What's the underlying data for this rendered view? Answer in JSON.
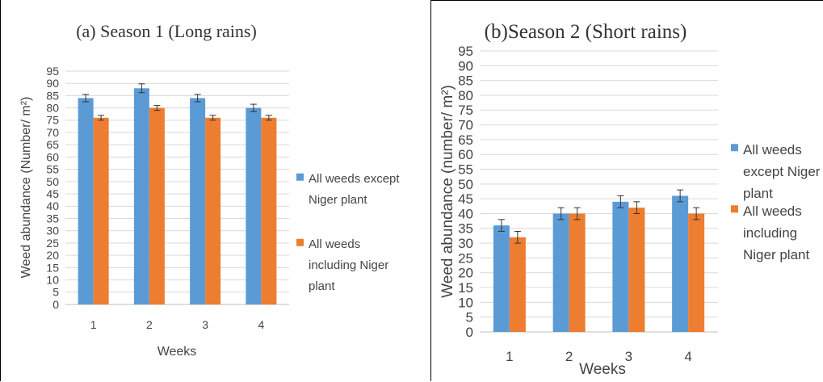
{
  "chart_data": [
    {
      "type": "bar",
      "title": "(a) Season 1 (Long rains)",
      "xlabel": "Weeks",
      "ylabel": "Weed abundance (Number/ m²)",
      "ylim": [
        0,
        95
      ],
      "yticks": [
        0,
        5,
        10,
        15,
        20,
        25,
        30,
        35,
        40,
        45,
        50,
        55,
        60,
        65,
        70,
        75,
        80,
        85,
        90,
        95
      ],
      "categories": [
        "1",
        "2",
        "3",
        "4"
      ],
      "grid": true,
      "legend_position": "right",
      "series": [
        {
          "name": "All weeds except Niger plant",
          "legend_lines": [
            "All weeds except",
            "Niger plant"
          ],
          "color": "#5b9bd5",
          "values": [
            84,
            88,
            84,
            80
          ],
          "errors": [
            1.5,
            1.8,
            1.5,
            1.5
          ]
        },
        {
          "name": "All weeds including Niger plant",
          "legend_lines": [
            "All weeds",
            "including Niger",
            "plant"
          ],
          "color": "#ed7d31",
          "values": [
            76,
            80,
            76,
            76
          ],
          "errors": [
            1.0,
            1.0,
            1.0,
            1.0
          ]
        }
      ]
    },
    {
      "type": "bar",
      "title": "(b)Season 2 (Short rains)",
      "xlabel": "Weeks",
      "ylabel": "Weed abundance (number/ m²)",
      "ylim": [
        0,
        95
      ],
      "yticks": [
        0,
        5,
        10,
        15,
        20,
        25,
        30,
        35,
        40,
        45,
        50,
        55,
        60,
        65,
        70,
        75,
        80,
        85,
        90,
        95
      ],
      "categories": [
        "1",
        "2",
        "3",
        "4"
      ],
      "grid": true,
      "legend_position": "right",
      "series": [
        {
          "name": "All weeds except Niger plant",
          "legend_lines": [
            "All weeds",
            "except Niger",
            "plant"
          ],
          "color": "#5b9bd5",
          "values": [
            36,
            40,
            44,
            46
          ],
          "errors": [
            2,
            2,
            2,
            2
          ]
        },
        {
          "name": "All weeds including Niger plant",
          "legend_lines": [
            "All weeds",
            "including",
            "Niger plant"
          ],
          "color": "#ed7d31",
          "values": [
            32,
            40,
            42,
            40
          ],
          "errors": [
            2,
            2,
            2,
            2
          ]
        }
      ]
    }
  ]
}
